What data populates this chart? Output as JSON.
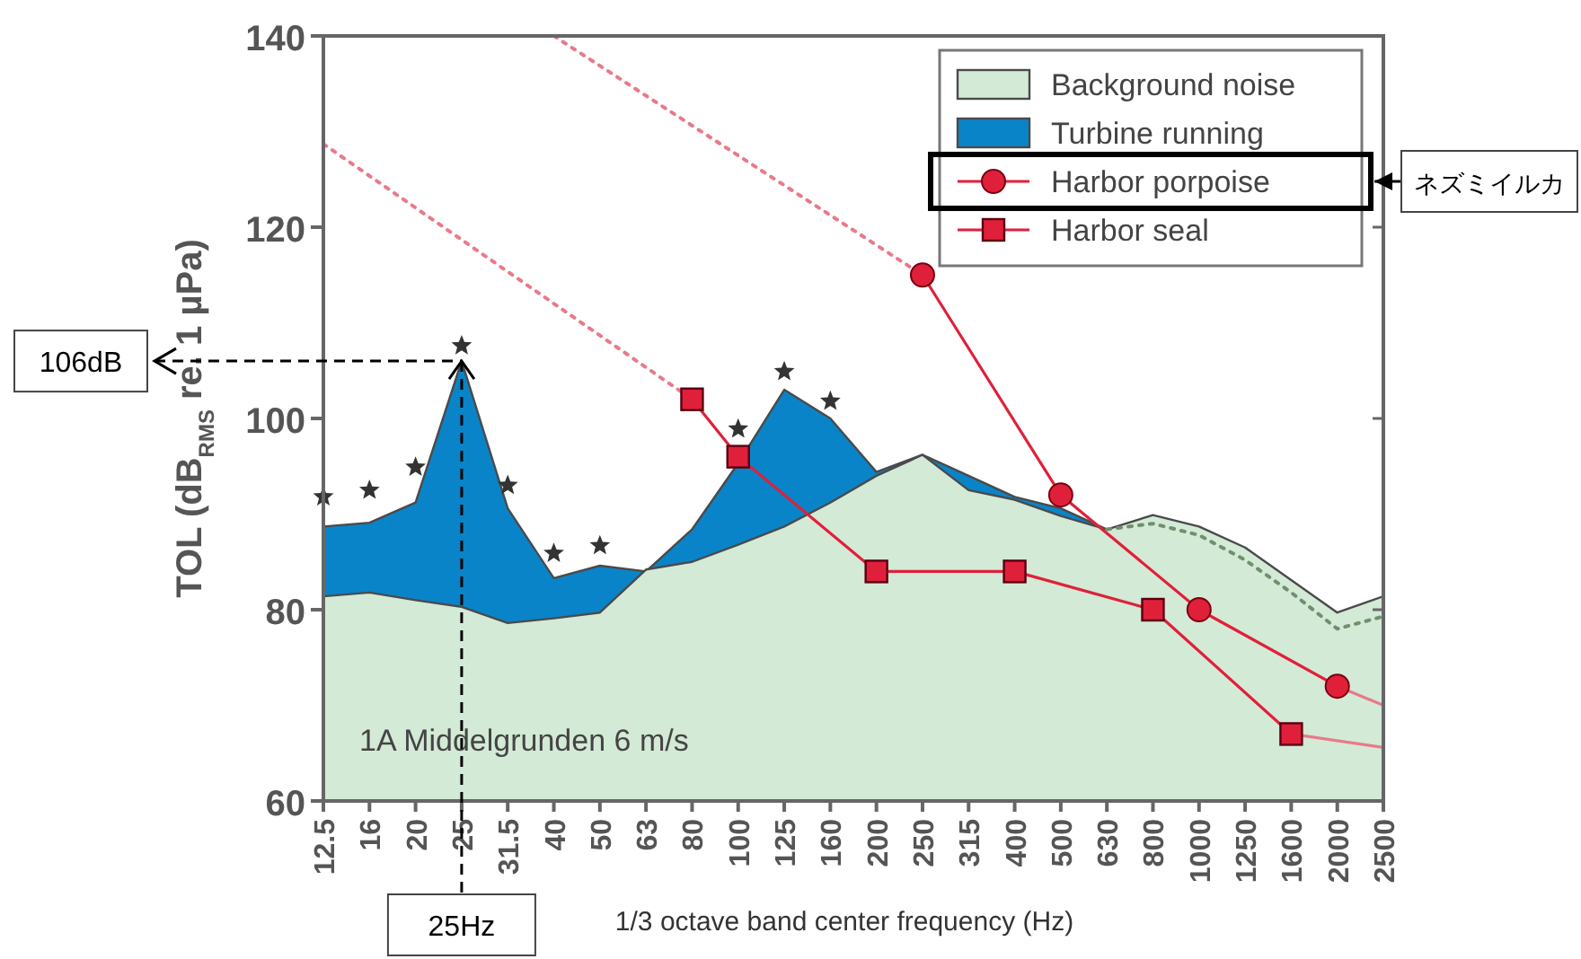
{
  "chart_data": {
    "type": "area",
    "xlabel": "1/3 octave band center frequency (Hz)",
    "ylabel": "TOL (dB$_{RMS}$ re. 1 µPa)",
    "categories": [
      "12.5",
      "16",
      "20",
      "25",
      "31.5",
      "40",
      "50",
      "63",
      "80",
      "100",
      "125",
      "160",
      "200",
      "250",
      "315",
      "400",
      "500",
      "630",
      "800",
      "1000",
      "1250",
      "1600",
      "2000",
      "2500"
    ],
    "ylim": [
      60,
      140
    ],
    "yticks": [
      60,
      80,
      100,
      120,
      140
    ],
    "legend": "top right",
    "grid": false,
    "series": [
      {
        "name": "Background noise",
        "color": "#d3ead6",
        "values": [
          81.4,
          81.8,
          81.0,
          80.3,
          78.6,
          79.1,
          79.7,
          84.2,
          85.0,
          86.8,
          88.7,
          91.2,
          94.0,
          96.2,
          92.5,
          91.5,
          89.8,
          88.4,
          89.9,
          88.7,
          86.5,
          83.1,
          79.7,
          81.4
        ]
      },
      {
        "name": "Turbine running",
        "color": "#0a84c8",
        "values": [
          88.7,
          89.1,
          91.2,
          106,
          90.6,
          83.3,
          84.6,
          84.0,
          88.4,
          95.3,
          103.0,
          100.0,
          94.4,
          96.2,
          94.0,
          91.8,
          90.6,
          88.4,
          null,
          null,
          null,
          null,
          null,
          null
        ]
      },
      {
        "name": "Harbor porpoise",
        "type": "line",
        "color": "#e0203a",
        "marker": "circle",
        "line_style": "solid",
        "values": [
          null,
          null,
          null,
          null,
          null,
          null,
          null,
          null,
          null,
          null,
          null,
          null,
          null,
          115,
          null,
          null,
          92,
          null,
          null,
          80,
          null,
          null,
          72,
          null
        ]
      },
      {
        "name": "Harbor seal",
        "type": "line",
        "color": "#e0203a",
        "marker": "square",
        "line_style": "solid",
        "values": [
          null,
          null,
          null,
          null,
          null,
          null,
          null,
          null,
          102,
          96,
          null,
          null,
          84,
          null,
          null,
          84,
          null,
          null,
          80,
          null,
          null,
          67,
          null,
          null
        ]
      },
      {
        "type": "line",
        "color": "#6f8f6f",
        "marker": "none",
        "line_style": "dotted",
        "values": [
          null,
          null,
          null,
          null,
          null,
          null,
          null,
          null,
          null,
          null,
          null,
          null,
          null,
          null,
          null,
          null,
          null,
          88.4,
          89.0,
          87.8,
          85.2,
          81.8,
          78.0,
          79.3
        ]
      },
      {
        "type": "line",
        "color": "#e87a8a",
        "marker": "none",
        "line_style": "dotted",
        "values": [
          null,
          null,
          null,
          null,
          null,
          140,
          null,
          null,
          null,
          null,
          null,
          null,
          null,
          115,
          null,
          null,
          null,
          null,
          null,
          null,
          null,
          null,
          null,
          null
        ]
      },
      {
        "type": "line",
        "color": "#e87a8a",
        "marker": "none",
        "line_style": "dotted",
        "values": [
          128.7,
          null,
          null,
          null,
          null,
          null,
          null,
          null,
          102,
          null,
          null,
          null,
          null,
          null,
          null,
          null,
          null,
          null,
          null,
          null,
          null,
          null,
          null,
          null
        ]
      },
      {
        "type": "line",
        "color": "#e87a8a",
        "marker": "none",
        "line_style": "solid",
        "values": [
          null,
          null,
          null,
          null,
          null,
          null,
          null,
          null,
          null,
          null,
          null,
          null,
          null,
          null,
          null,
          null,
          null,
          null,
          null,
          null,
          null,
          null,
          72,
          70
        ]
      },
      {
        "type": "line",
        "color": "#e87a8a",
        "marker": "none",
        "line_style": "solid",
        "values": [
          null,
          null,
          null,
          null,
          null,
          null,
          null,
          null,
          null,
          null,
          null,
          null,
          null,
          null,
          null,
          null,
          null,
          null,
          null,
          null,
          null,
          67,
          null,
          65.6
        ]
      },
      {
        "type": "scatter",
        "color": "#333333",
        "marker": "star",
        "values": [
          91.8,
          92.5,
          94.9,
          107.6,
          93.0,
          85.9,
          86.7,
          null,
          null,
          98.9,
          104.9,
          101.8,
          null,
          null,
          null,
          null,
          null,
          null,
          null,
          null,
          null,
          null,
          null,
          null
        ]
      }
    ],
    "annotations": [
      "1A Middelgrunden 6 m/s",
      {
        "text": "106dB",
        "x": "25",
        "y": 106
      },
      {
        "text": "25Hz",
        "x": "25",
        "y": 106
      },
      "ネズミイルカ"
    ]
  }
}
